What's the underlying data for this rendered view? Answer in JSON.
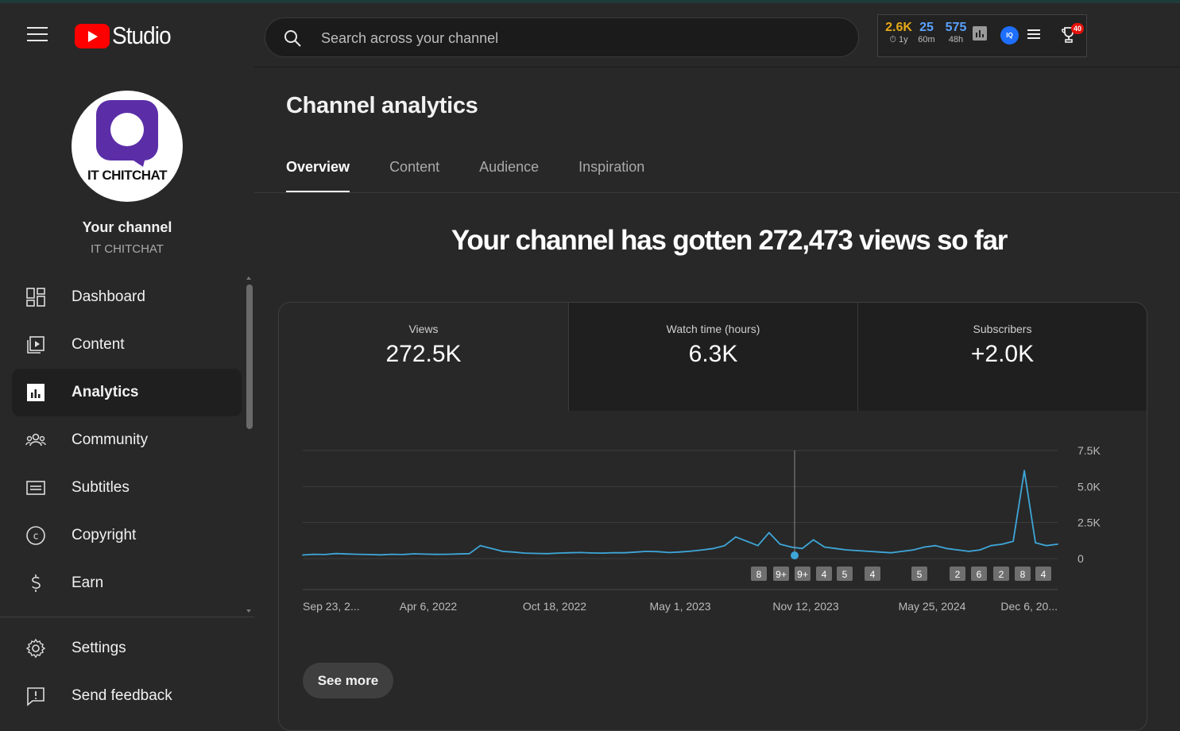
{
  "header": {
    "logo_text": "Studio",
    "search_placeholder": "Search across your channel",
    "extension": {
      "stat1": {
        "value": "2.6K",
        "label": "1y",
        "color": "#e6a817"
      },
      "stat2": {
        "value": "25",
        "label": "60m",
        "color": "#5aa2ff"
      },
      "stat3": {
        "value": "575",
        "label": "48h",
        "color": "#5aa2ff"
      },
      "iq_label": "IQ",
      "trophy_badge": "40"
    }
  },
  "channel": {
    "avatar_text": "IT CHITCHAT",
    "title": "Your channel",
    "name": "IT CHITCHAT"
  },
  "sidebar": {
    "items": [
      {
        "label": "Dashboard",
        "icon": "dashboard-icon"
      },
      {
        "label": "Content",
        "icon": "content-icon"
      },
      {
        "label": "Analytics",
        "icon": "analytics-icon",
        "active": true
      },
      {
        "label": "Community",
        "icon": "community-icon"
      },
      {
        "label": "Subtitles",
        "icon": "subtitles-icon"
      },
      {
        "label": "Copyright",
        "icon": "copyright-icon"
      },
      {
        "label": "Earn",
        "icon": "earn-icon"
      }
    ],
    "bottom_items": [
      {
        "label": "Settings",
        "icon": "gear-icon"
      },
      {
        "label": "Send feedback",
        "icon": "feedback-icon"
      }
    ]
  },
  "main": {
    "title": "Channel analytics",
    "tabs": [
      "Overview",
      "Content",
      "Audience",
      "Inspiration"
    ],
    "active_tab": "Overview",
    "headline": "Your channel has gotten 272,473 views so far",
    "metrics": [
      {
        "label": "Views",
        "value": "272.5K"
      },
      {
        "label": "Watch time (hours)",
        "value": "6.3K"
      },
      {
        "label": "Subscribers",
        "value": "+2.0K"
      }
    ],
    "see_more": "See more"
  },
  "chart_data": {
    "type": "line",
    "series": [
      {
        "values": [
          250,
          300,
          280,
          350,
          320,
          300,
          280,
          260,
          300,
          280,
          330,
          310,
          290,
          300,
          320,
          340,
          900,
          700,
          500,
          450,
          380,
          360,
          340,
          380,
          400,
          420,
          390,
          380,
          410,
          400,
          450,
          500,
          480,
          420,
          460,
          520,
          600,
          700,
          900,
          1500,
          1200,
          900,
          1800,
          1000,
          800,
          700,
          1300,
          800,
          700,
          600,
          550,
          500,
          450,
          400,
          500,
          600,
          800,
          900,
          700,
          600,
          500,
          600,
          900,
          1000,
          1200,
          6100,
          1100,
          900,
          1000
        ]
      }
    ],
    "x_tick_labels": [
      "Sep 23, 2...",
      "Apr 6, 2022",
      "Oct 18, 2022",
      "May 1, 2023",
      "Nov 12, 2023",
      "May 25, 2024",
      "Dec 6, 20..."
    ],
    "y_tick_labels": [
      "7.5K",
      "5.0K",
      "2.5K",
      "0"
    ],
    "ylim": [
      0,
      7500
    ],
    "line_color": "#3ea6d8",
    "markers": [
      "8",
      "9+",
      "9+",
      "4",
      "5",
      "4",
      "5",
      "2",
      "6",
      "2",
      "8",
      "4"
    ]
  }
}
